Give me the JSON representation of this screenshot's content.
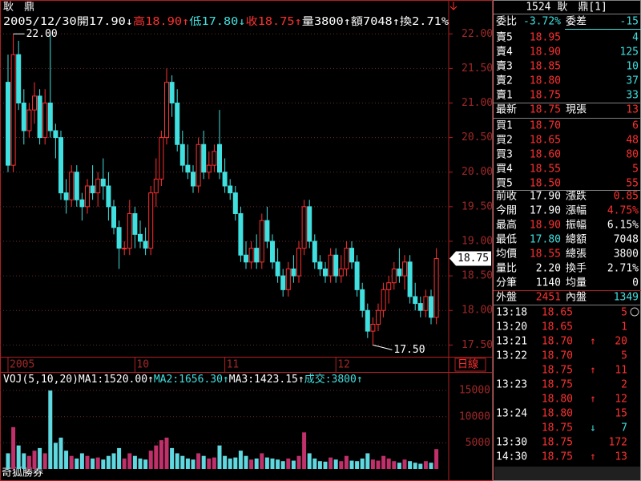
{
  "chart_data": {
    "type": "candlestick",
    "name": "耿　鼎",
    "header": [
      {
        "text": "2005/12/30",
        "color": "#ffffff"
      },
      {
        "text": "開17.90↓",
        "color": "#ffffff"
      },
      {
        "text": "高18.90↑",
        "color": "#ff3030"
      },
      {
        "text": "低17.80↓",
        "color": "#40e0e0"
      },
      {
        "text": "收18.75↑",
        "color": "#ff3030"
      },
      {
        "text": "量3800↑",
        "color": "#ffffff"
      },
      {
        "text": "額7048↑",
        "color": "#ffffff"
      },
      {
        "text": "換2.71%",
        "color": "#ffffff"
      }
    ],
    "categories": [
      "2005",
      null,
      null,
      null,
      null,
      null,
      null,
      null,
      null,
      null,
      null,
      null,
      null,
      null,
      null,
      null,
      null,
      null,
      null,
      null,
      null,
      null,
      null,
      null,
      "10",
      null,
      null,
      null,
      null,
      null,
      null,
      null,
      null,
      null,
      null,
      null,
      null,
      null,
      null,
      null,
      null,
      "11",
      null,
      null,
      null,
      null,
      null,
      null,
      null,
      null,
      null,
      null,
      null,
      null,
      null,
      null,
      null,
      null,
      null,
      null,
      null,
      null,
      "12",
      null,
      null,
      null,
      null,
      null,
      null,
      null,
      null,
      null,
      null,
      null,
      null,
      null,
      null,
      null,
      null,
      null,
      null,
      null
    ],
    "open": [
      21.3,
      20.1,
      21.7,
      21.0,
      20.6,
      20.9,
      21.1,
      20.5,
      21.0,
      20.6,
      20.5,
      19.7,
      19.6,
      20.0,
      19.6,
      19.5,
      19.8,
      19.7,
      19.9,
      19.8,
      19.5,
      19.2,
      18.9,
      18.9,
      19.4,
      19.1,
      19.0,
      18.9,
      19.7,
      19.9,
      20.5,
      21.3,
      21.0,
      20.4,
      20.1,
      20.0,
      19.8,
      20.4,
      20.0,
      20.1,
      20.4,
      20.0,
      19.8,
      19.7,
      19.4,
      18.8,
      18.7,
      18.9,
      18.7,
      19.3,
      19.0,
      18.7,
      18.5,
      18.3,
      18.6,
      18.5,
      18.9,
      19.5,
      19.0,
      18.7,
      18.6,
      18.5,
      18.8,
      18.5,
      18.6,
      18.9,
      18.7,
      18.3,
      18.0,
      17.7,
      17.8,
      18.0,
      18.3,
      18.4,
      18.6,
      18.5,
      18.7,
      18.2,
      18.1,
      18.0,
      18.2,
      17.9
    ],
    "high": [
      21.7,
      22.0,
      21.9,
      21.2,
      21.0,
      21.3,
      21.2,
      21.2,
      22.0,
      20.7,
      20.6,
      19.9,
      20.1,
      20.1,
      19.7,
      19.9,
      20.1,
      20.0,
      20.2,
      20.0,
      19.6,
      19.3,
      19.0,
      19.6,
      19.5,
      19.3,
      19.2,
      19.8,
      20.2,
      20.6,
      21.5,
      21.4,
      21.2,
      20.6,
      20.4,
      20.1,
      20.5,
      20.6,
      20.3,
      20.4,
      20.9,
      20.2,
      19.9,
      19.8,
      19.5,
      19.0,
      19.0,
      19.1,
      19.4,
      19.5,
      19.1,
      18.9,
      18.6,
      18.7,
      18.8,
      19.0,
      19.6,
      19.6,
      19.1,
      18.8,
      18.7,
      18.9,
      18.9,
      18.8,
      19.0,
      19.0,
      18.8,
      18.4,
      18.1,
      17.9,
      18.1,
      18.4,
      18.5,
      18.7,
      18.9,
      18.8,
      18.8,
      18.4,
      18.2,
      18.3,
      18.3,
      18.9
    ],
    "low": [
      20.0,
      20.0,
      20.9,
      20.4,
      20.5,
      20.7,
      20.4,
      20.4,
      20.5,
      20.2,
      19.6,
      19.4,
      19.5,
      19.5,
      19.3,
      19.4,
      19.6,
      19.5,
      19.6,
      19.3,
      19.1,
      18.6,
      18.8,
      18.8,
      18.9,
      18.9,
      18.8,
      18.8,
      19.5,
      19.8,
      20.4,
      20.8,
      20.3,
      20.0,
      19.9,
      19.7,
      19.7,
      19.9,
      19.9,
      20.0,
      19.9,
      19.7,
      19.6,
      19.3,
      18.7,
      18.6,
      18.6,
      18.6,
      18.6,
      18.9,
      18.6,
      18.4,
      18.2,
      18.2,
      18.4,
      18.4,
      18.8,
      18.9,
      18.6,
      18.5,
      18.4,
      18.4,
      18.4,
      18.4,
      18.5,
      18.6,
      18.2,
      17.9,
      17.6,
      17.5,
      17.7,
      17.9,
      18.1,
      18.3,
      18.4,
      18.3,
      18.1,
      18.0,
      17.9,
      17.9,
      17.8,
      17.8
    ],
    "close": [
      20.1,
      21.7,
      21.0,
      20.6,
      20.9,
      21.1,
      20.5,
      21.0,
      20.6,
      20.5,
      19.7,
      19.6,
      20.0,
      19.6,
      19.5,
      19.8,
      19.7,
      19.9,
      19.8,
      19.5,
      19.2,
      18.9,
      18.9,
      19.4,
      19.1,
      19.0,
      18.9,
      19.7,
      19.9,
      20.5,
      21.3,
      21.0,
      20.4,
      20.1,
      20.0,
      19.8,
      20.4,
      20.0,
      20.1,
      20.3,
      20.0,
      19.8,
      19.7,
      19.4,
      18.8,
      18.7,
      18.9,
      18.7,
      19.3,
      19.0,
      18.7,
      18.5,
      18.3,
      18.6,
      18.5,
      18.9,
      19.5,
      19.0,
      18.7,
      18.6,
      18.5,
      18.8,
      18.5,
      18.6,
      18.9,
      18.7,
      18.3,
      18.0,
      17.7,
      17.8,
      18.0,
      18.3,
      18.4,
      18.6,
      18.5,
      18.7,
      18.2,
      18.1,
      18.0,
      18.2,
      17.9,
      18.75
    ],
    "up_color": "#ff3030",
    "down_color": "#40e0e0",
    "ylim": [
      17.33,
      22.49
    ],
    "yticks": [
      {
        "value": 17.5,
        "label": "17.50"
      },
      {
        "value": 18,
        "label": "18.00"
      },
      {
        "value": 18.5,
        "label": "18.50"
      },
      {
        "value": 19,
        "label": "19.00"
      },
      {
        "value": 19.5,
        "label": "19.50"
      },
      {
        "value": 20,
        "label": "20.00"
      },
      {
        "value": 20.5,
        "label": "20.50"
      },
      {
        "value": 21,
        "label": "21.00"
      },
      {
        "value": 21.5,
        "label": "21.50"
      },
      {
        "value": 22,
        "label": "22.00"
      }
    ],
    "grid": true,
    "max_label": "22.00",
    "min_label": "17.50",
    "last_label": "18.75",
    "period": "日線",
    "volume": {
      "header": [
        {
          "text": "VOJ(5,10,20)",
          "color": "#ffffff"
        },
        {
          "text": "MA1:1520.00↑",
          "color": "#ffffff"
        },
        {
          "text": "MA2:1656.30↑",
          "color": "#40e0e0"
        },
        {
          "text": "MA3:1423.15↑",
          "color": "#ffffff"
        },
        {
          "text": "成交:3800↑",
          "color": "#40e0e0"
        }
      ],
      "values": [
        3000,
        8000,
        4500,
        3000,
        2500,
        3500,
        4000,
        3000,
        15000,
        5000,
        6000,
        3500,
        2500,
        2000,
        3000,
        2500,
        2000,
        2200,
        1800,
        2500,
        3000,
        4000,
        2000,
        3000,
        2500,
        2000,
        1800,
        3500,
        4500,
        5500,
        6000,
        4000,
        3000,
        2500,
        2000,
        1800,
        3000,
        2500,
        2000,
        2200,
        4500,
        2500,
        2000,
        2200,
        3500,
        2500,
        1800,
        2000,
        3000,
        2200,
        2000,
        1800,
        1500,
        2000,
        1600,
        2500,
        7000,
        3000,
        2000,
        1500,
        1400,
        2200,
        1800,
        1500,
        2500,
        1600,
        1500,
        2000,
        3000,
        1800,
        1600,
        2500,
        2000,
        1500,
        1200,
        1800,
        1500,
        1200,
        1000,
        1500,
        1200,
        3800
      ],
      "up_color": "#c0306a",
      "down_color": "#60d8e0",
      "ylim": [
        0,
        18400
      ],
      "yticks": [
        5000,
        10000,
        15000
      ]
    },
    "source": "奇狐勝券"
  },
  "quote": {
    "title": "1524 耿　鼎[1]",
    "summary": [
      "委比",
      "-3.72%",
      "委差",
      "-15"
    ],
    "asks": [
      [
        "賣5",
        "18.95",
        "4"
      ],
      [
        "賣4",
        "18.90",
        "125"
      ],
      [
        "賣3",
        "18.85",
        "10"
      ],
      [
        "賣2",
        "18.80",
        "37"
      ],
      [
        "賣1",
        "18.75",
        "33"
      ]
    ],
    "last": [
      "最新",
      "18.75",
      "現張",
      "13"
    ],
    "bids": [
      [
        "買1",
        "18.70",
        "6"
      ],
      [
        "買2",
        "18.65",
        "48"
      ],
      [
        "買3",
        "18.60",
        "80"
      ],
      [
        "買4",
        "18.55",
        "5"
      ],
      [
        "買5",
        "18.50",
        "55"
      ]
    ],
    "stats": [
      [
        "前收",
        "17.90",
        "漲跌",
        "0.85"
      ],
      [
        "今開",
        "17.90",
        "漲幅",
        "4.75%"
      ],
      [
        "最高",
        "18.90",
        "振幅",
        "6.15%"
      ],
      [
        "最低",
        "17.80",
        "總額",
        "7048"
      ],
      [
        "均價",
        "18.55",
        "總張",
        "3800"
      ],
      [
        "量比",
        "2.20",
        "換手",
        "2.71%"
      ],
      [
        "分筆",
        "1140",
        "均量",
        "0"
      ],
      [
        "外盤",
        "2451",
        "內盤",
        "1349"
      ]
    ],
    "trades": [
      [
        "13:18",
        "18.65",
        null,
        "5"
      ],
      [
        "13:20",
        "18.65",
        null,
        "1"
      ],
      [
        "13:21",
        "18.70",
        "↑",
        "20"
      ],
      [
        "13:22",
        "18.70",
        null,
        "5"
      ],
      [
        null,
        "18.75",
        "↑",
        "11"
      ],
      [
        "13:23",
        "18.75",
        null,
        "2"
      ],
      [
        null,
        "18.80",
        "↑",
        "12"
      ],
      [
        "13:24",
        "18.80",
        null,
        "15"
      ],
      [
        null,
        "18.75",
        "↓",
        "7"
      ],
      [
        "13:30",
        "18.75",
        null,
        "172"
      ],
      [
        "14:30",
        "18.75",
        "↑",
        "13"
      ]
    ]
  }
}
